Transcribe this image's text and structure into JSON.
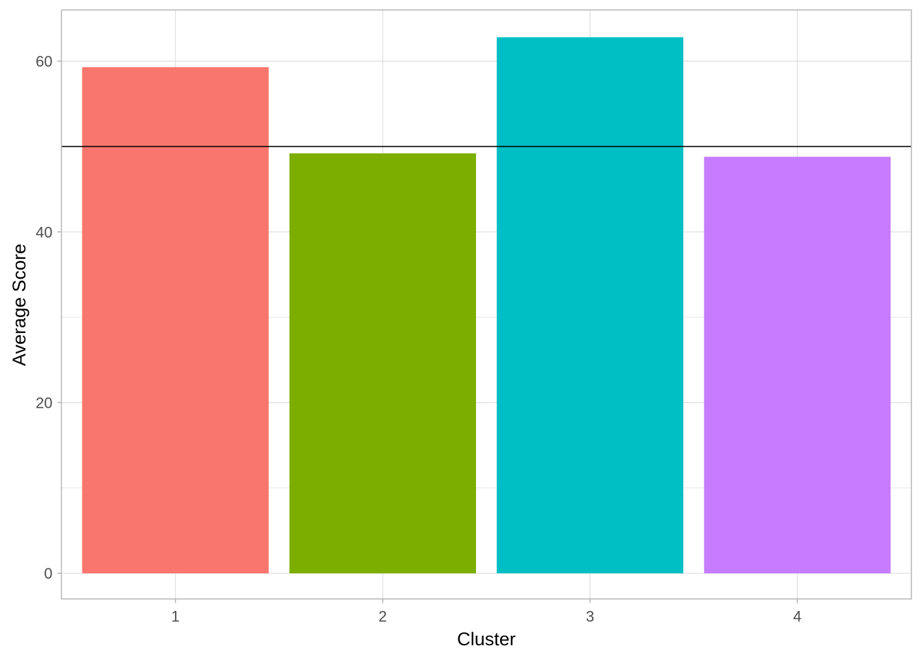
{
  "chart_data": {
    "type": "bar",
    "title": "",
    "xlabel": "Cluster",
    "ylabel": "Average Score",
    "categories": [
      "1",
      "2",
      "3",
      "4"
    ],
    "values": [
      59.3,
      49.2,
      62.8,
      48.8
    ],
    "bar_colors": [
      "#F8766D",
      "#7CAE00",
      "#00BFC4",
      "#C77CFF"
    ],
    "ylim": [
      -3,
      66
    ],
    "y_ticks": [
      0,
      20,
      40,
      60
    ],
    "y_tick_labels": [
      "0",
      "20",
      "40",
      "60"
    ],
    "y_minor_ticks": [
      10,
      30,
      50
    ],
    "reference_line": {
      "y": 50,
      "color": "#000000"
    },
    "grid": true,
    "legend": "none",
    "panel_border_color": "#b3b3b3",
    "grid_color": "#dedede"
  }
}
